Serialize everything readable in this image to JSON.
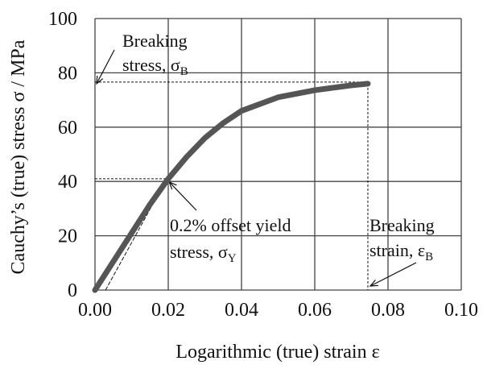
{
  "chart_data": {
    "type": "line",
    "xlabel": "Logarithmic (true) strain ε",
    "ylabel": "Cauchy’s (true) stress σ / MPa",
    "xlim": [
      0,
      0.1
    ],
    "ylim": [
      0,
      100
    ],
    "x_ticks": [
      "0.00",
      "0.02",
      "0.04",
      "0.06",
      "0.08",
      "0.10"
    ],
    "y_ticks": [
      "0",
      "20",
      "40",
      "60",
      "80",
      "100"
    ],
    "grid": true,
    "series": [
      {
        "x": [
          0,
          0.005,
          0.01,
          0.015,
          0.02,
          0.025,
          0.03,
          0.035,
          0.04,
          0.05,
          0.06,
          0.07,
          0.0745
        ],
        "y": [
          0,
          10.5,
          21,
          31.5,
          41,
          49,
          56,
          61.5,
          66,
          71,
          73.6,
          75.4,
          76
        ],
        "color": "#555555"
      }
    ],
    "offset_line": {
      "x": [
        0.002,
        0.0196
      ],
      "y": [
        0,
        41
      ]
    },
    "annotations": {
      "breaking_stress": {
        "line1": "Breaking",
        "line2": "stress, σ",
        "sub": "B",
        "value": 76
      },
      "yield": {
        "line1": "0.2% offset yield",
        "line2": "stress, σ",
        "sub": "Y",
        "value": 41,
        "strain": 0.0196
      },
      "breaking_strain": {
        "line1": "Breaking",
        "line2": "strain, ε",
        "sub": "B",
        "value": 0.0745
      }
    }
  }
}
